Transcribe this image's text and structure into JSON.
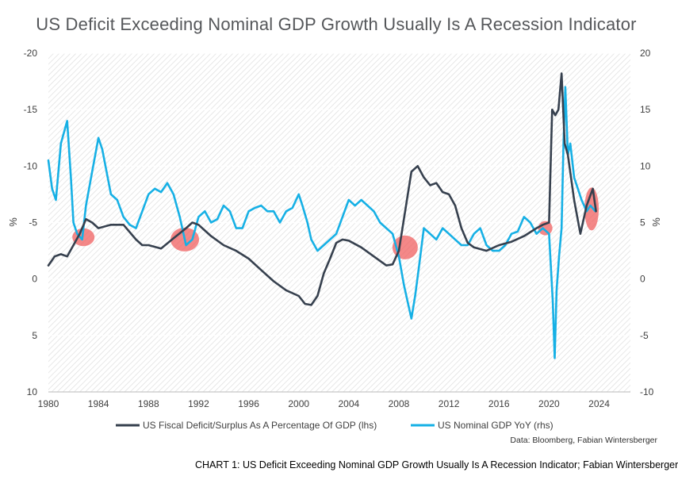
{
  "title": "US Deficit Exceeding Nominal GDP Growth Usually Is A Recession Indicator",
  "caption": "CHART 1: US Deficit Exceeding Nominal GDP Growth Usually Is A Recession Indicator; Fabian Wintersberger",
  "source": "Data: Bloomberg, Fabian Wintersberger",
  "chart_data": {
    "type": "line",
    "title": "US Deficit Exceeding Nominal GDP Growth Usually Is A Recession Indicator",
    "xlabel": "",
    "ylabel_left": "%",
    "ylabel_right": "%",
    "xlim": [
      1980,
      2026.5
    ],
    "x_ticks": [
      1980,
      1984,
      1988,
      1992,
      1996,
      2000,
      2004,
      2008,
      2012,
      2016,
      2020,
      2024
    ],
    "x_tick_labels": [
      "1980",
      "1984",
      "1988",
      "1992",
      "1996",
      "2000",
      "2004",
      "2008",
      "2012",
      "2016",
      "2020",
      "2024"
    ],
    "ylim_left": [
      -20,
      10
    ],
    "ylim_right": [
      20,
      -10
    ],
    "y_ticks_left": [
      -20,
      -15,
      -10,
      -5,
      0,
      5,
      10
    ],
    "y_tick_labels_left": [
      "-20",
      "-15",
      "-10",
      "-5",
      "0",
      "5",
      "10"
    ],
    "y_ticks_right": [
      20,
      15,
      10,
      5,
      0,
      -5,
      -10
    ],
    "y_tick_labels_right": [
      "20",
      "15",
      "10",
      "5",
      "0",
      "-5",
      "-10"
    ],
    "grid": true,
    "legend_position": "bottom",
    "series": [
      {
        "name": "US Fiscal Deficit/Surplus As A Percentage Of GDP (lhs)",
        "axis": "left",
        "color": "#36404e",
        "x": [
          1980,
          1980.5,
          1981,
          1981.5,
          1982,
          1982.5,
          1983,
          1983.5,
          1984,
          1985,
          1986,
          1987,
          1987.5,
          1988,
          1989,
          1990,
          1991,
          1991.5,
          1992,
          1992.5,
          1993,
          1994,
          1995,
          1996,
          1997,
          1998,
          1999,
          2000,
          2000.5,
          2001,
          2001.5,
          2002,
          2002.5,
          2003,
          2003.5,
          2004,
          2005,
          2006,
          2007,
          2007.5,
          2008,
          2008.5,
          2009,
          2009.5,
          2010,
          2010.5,
          2011,
          2011.5,
          2012,
          2012.5,
          2013,
          2013.5,
          2014,
          2015,
          2016,
          2017,
          2018,
          2019,
          2019.5,
          2020,
          2020.25,
          2020.5,
          2020.75,
          2021,
          2021.25,
          2021.5,
          2022,
          2022.5,
          2023,
          2023.5,
          2023.75
        ],
        "values": [
          -1.2,
          -2.0,
          -2.2,
          -2.0,
          -3.0,
          -4.0,
          -5.3,
          -5.0,
          -4.5,
          -4.8,
          -4.8,
          -3.5,
          -3.0,
          -3.0,
          -2.7,
          -3.6,
          -4.5,
          -5.0,
          -4.8,
          -4.3,
          -3.8,
          -3.0,
          -2.5,
          -1.8,
          -0.8,
          0.2,
          1.0,
          1.5,
          2.2,
          2.3,
          1.5,
          -0.5,
          -1.8,
          -3.2,
          -3.5,
          -3.4,
          -2.8,
          -2.0,
          -1.2,
          -1.3,
          -2.5,
          -6.0,
          -9.5,
          -10.0,
          -9.0,
          -8.3,
          -8.5,
          -7.7,
          -7.5,
          -6.5,
          -4.5,
          -3.2,
          -2.8,
          -2.5,
          -3.0,
          -3.3,
          -3.8,
          -4.5,
          -4.8,
          -5.0,
          -15.0,
          -14.5,
          -15.0,
          -18.2,
          -12.0,
          -11.0,
          -7.0,
          -4.0,
          -6.5,
          -8.0,
          -6.0
        ]
      },
      {
        "name": "US Nominal GDP YoY (rhs)",
        "axis": "right",
        "color": "#16b0e5",
        "x": [
          1980,
          1980.3,
          1980.6,
          1981,
          1981.5,
          1981.8,
          1982,
          1982.3,
          1982.7,
          1983,
          1983.5,
          1984,
          1984.3,
          1985,
          1985.5,
          1986,
          1986.5,
          1987,
          1987.5,
          1988,
          1988.5,
          1989,
          1989.5,
          1990,
          1990.5,
          1991,
          1991.5,
          1992,
          1992.5,
          1993,
          1993.5,
          1994,
          1994.5,
          1995,
          1995.5,
          1996,
          1996.5,
          1997,
          1997.5,
          1998,
          1998.5,
          1999,
          1999.5,
          2000,
          2000.3,
          2000.7,
          2001,
          2001.5,
          2002,
          2002.5,
          2003,
          2003.5,
          2004,
          2004.5,
          2005,
          2005.5,
          2006,
          2006.5,
          2007,
          2007.5,
          2008,
          2008.4,
          2008.7,
          2009,
          2009.3,
          2009.6,
          2010,
          2010.5,
          2011,
          2011.5,
          2012,
          2012.5,
          2013,
          2013.5,
          2014,
          2014.5,
          2015,
          2015.5,
          2016,
          2016.5,
          2017,
          2017.5,
          2018,
          2018.5,
          2019,
          2019.5,
          2020,
          2020.3,
          2020.45,
          2020.6,
          2020.8,
          2021,
          2021.15,
          2021.3,
          2021.5,
          2021.7,
          2022,
          2022.3,
          2022.6,
          2023,
          2023.3,
          2023.7
        ],
        "values": [
          10.5,
          8.0,
          7.0,
          12.0,
          14.0,
          9.0,
          5.0,
          4.0,
          3.5,
          6.5,
          9.5,
          12.5,
          11.5,
          7.5,
          7.0,
          5.5,
          4.8,
          4.5,
          6.0,
          7.5,
          8.0,
          7.7,
          8.5,
          7.5,
          5.5,
          3.0,
          3.5,
          5.5,
          6.0,
          5.0,
          5.3,
          6.5,
          6.0,
          4.5,
          4.5,
          6.0,
          6.3,
          6.5,
          6.0,
          6.0,
          5.0,
          6.0,
          6.3,
          7.5,
          6.5,
          5.0,
          3.5,
          2.5,
          3.0,
          3.5,
          4.0,
          5.5,
          7.0,
          6.5,
          7.0,
          6.5,
          6.0,
          5.0,
          4.5,
          4.0,
          2.0,
          -0.5,
          -2.0,
          -3.5,
          -1.5,
          1.0,
          4.5,
          4.0,
          3.5,
          4.5,
          4.0,
          3.5,
          3.0,
          3.0,
          4.0,
          4.5,
          3.0,
          2.5,
          2.5,
          3.0,
          4.0,
          4.2,
          5.5,
          5.0,
          4.0,
          4.5,
          4.0,
          -2.0,
          -7.0,
          -1.0,
          2.0,
          4.5,
          12.0,
          17.0,
          11.0,
          12.0,
          9.0,
          8.0,
          7.0,
          6.0,
          6.5,
          6.0
        ]
      }
    ],
    "annotations": [
      {
        "type": "circle",
        "x": 1982.8,
        "y_left": -3.7,
        "label": ""
      },
      {
        "type": "circle",
        "x": 1990.9,
        "y_left": -3.5,
        "label": ""
      },
      {
        "type": "circle",
        "x": 2008.5,
        "y_left": -2.8,
        "label": ""
      },
      {
        "type": "circle",
        "x": 2019.7,
        "y_left": -4.5,
        "label": ""
      },
      {
        "type": "ellipse",
        "x": 2023.4,
        "y_left": -6.2,
        "label": ""
      }
    ]
  }
}
